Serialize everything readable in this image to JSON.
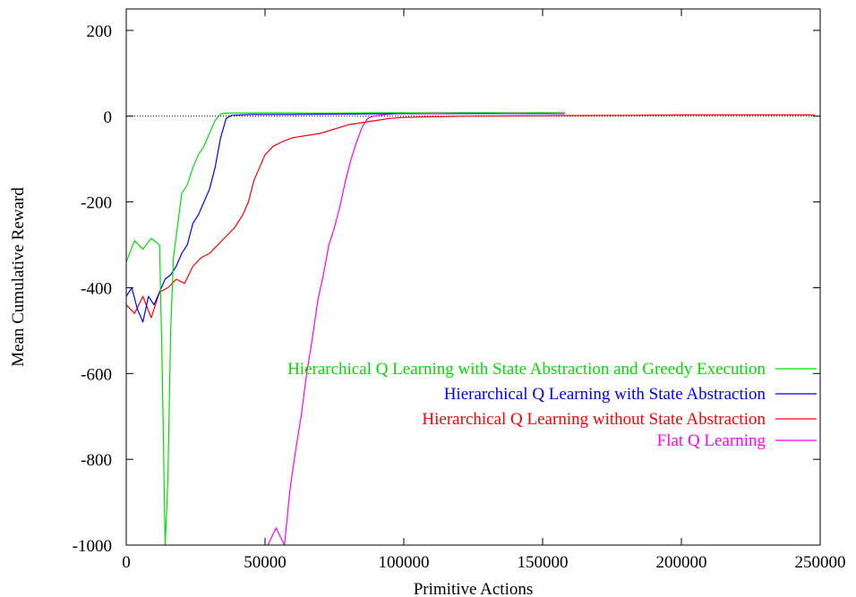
{
  "chart_data": {
    "type": "line",
    "xlabel": "Primitive Actions",
    "ylabel": "Mean Cumulative Reward",
    "xlim": [
      0,
      250000
    ],
    "ylim": [
      -1000,
      250
    ],
    "x_ticks": [
      0,
      50000,
      100000,
      150000,
      200000,
      250000
    ],
    "y_ticks": [
      -1000,
      -800,
      -600,
      -400,
      -200,
      0,
      200
    ],
    "x_tick_labels": [
      "0",
      "50000",
      "100000",
      "150000",
      "200000",
      "250000"
    ],
    "y_tick_labels": [
      "-1000",
      "-800",
      "-600",
      "-400",
      "-200",
      "0",
      "200"
    ],
    "reference_line": {
      "y": 0,
      "style": "dotted",
      "color": "#000000"
    },
    "legend_position": "right, middle-lower",
    "grid": false,
    "series": [
      {
        "name": "Hierarchical Q Learning with State Abstraction and Greedy Execution",
        "color": "#00e000",
        "points": [
          [
            0,
            -340
          ],
          [
            3000,
            -290
          ],
          [
            6000,
            -310
          ],
          [
            9000,
            -285
          ],
          [
            12000,
            -300
          ],
          [
            13000,
            -600
          ],
          [
            14000,
            -1000
          ],
          [
            15000,
            -850
          ],
          [
            16000,
            -500
          ],
          [
            17000,
            -330
          ],
          [
            18000,
            -280
          ],
          [
            19000,
            -230
          ],
          [
            20000,
            -180
          ],
          [
            22000,
            -160
          ],
          [
            24000,
            -120
          ],
          [
            26000,
            -90
          ],
          [
            28000,
            -70
          ],
          [
            30000,
            -40
          ],
          [
            32000,
            -10
          ],
          [
            34000,
            5
          ],
          [
            36000,
            7
          ],
          [
            50000,
            8
          ],
          [
            70000,
            7
          ],
          [
            90000,
            8
          ],
          [
            100000,
            8
          ],
          [
            110000,
            7
          ],
          [
            120000,
            8
          ],
          [
            130000,
            8
          ],
          [
            140000,
            7
          ],
          [
            150000,
            8
          ],
          [
            158000,
            7
          ]
        ]
      },
      {
        "name": "Hierarchical Q Learning with State Abstraction",
        "color": "#0000ff",
        "points": [
          [
            0,
            -420
          ],
          [
            2000,
            -400
          ],
          [
            4000,
            -450
          ],
          [
            6000,
            -480
          ],
          [
            8000,
            -420
          ],
          [
            10000,
            -440
          ],
          [
            12000,
            -410
          ],
          [
            14000,
            -380
          ],
          [
            16000,
            -370
          ],
          [
            18000,
            -350
          ],
          [
            20000,
            -320
          ],
          [
            22000,
            -300
          ],
          [
            24000,
            -250
          ],
          [
            26000,
            -230
          ],
          [
            28000,
            -200
          ],
          [
            30000,
            -170
          ],
          [
            32000,
            -120
          ],
          [
            34000,
            -50
          ],
          [
            36000,
            -5
          ],
          [
            38000,
            2
          ],
          [
            45000,
            4
          ],
          [
            60000,
            4
          ],
          [
            80000,
            5
          ],
          [
            100000,
            6
          ],
          [
            120000,
            6
          ],
          [
            140000,
            6
          ],
          [
            158000,
            6
          ]
        ]
      },
      {
        "name": "Hierarchical Q Learning without State Abstraction",
        "color": "#ff0000",
        "points": [
          [
            0,
            -440
          ],
          [
            3000,
            -460
          ],
          [
            6000,
            -420
          ],
          [
            9000,
            -470
          ],
          [
            12000,
            -410
          ],
          [
            15000,
            -400
          ],
          [
            18000,
            -380
          ],
          [
            21000,
            -390
          ],
          [
            24000,
            -350
          ],
          [
            27000,
            -330
          ],
          [
            30000,
            -320
          ],
          [
            33000,
            -300
          ],
          [
            36000,
            -280
          ],
          [
            39000,
            -260
          ],
          [
            42000,
            -230
          ],
          [
            44000,
            -200
          ],
          [
            46000,
            -150
          ],
          [
            48000,
            -120
          ],
          [
            50000,
            -90
          ],
          [
            53000,
            -70
          ],
          [
            56000,
            -60
          ],
          [
            60000,
            -50
          ],
          [
            65000,
            -45
          ],
          [
            70000,
            -40
          ],
          [
            75000,
            -30
          ],
          [
            80000,
            -20
          ],
          [
            85000,
            -15
          ],
          [
            90000,
            -10
          ],
          [
            95000,
            -5
          ],
          [
            100000,
            -3
          ],
          [
            120000,
            0
          ],
          [
            150000,
            1
          ],
          [
            180000,
            2
          ],
          [
            200000,
            3
          ],
          [
            220000,
            3
          ],
          [
            248000,
            3
          ]
        ]
      },
      {
        "name": "Flat Q Learning",
        "color": "#ff00ff",
        "points": [
          [
            51000,
            -1000
          ],
          [
            54000,
            -960
          ],
          [
            57000,
            -1000
          ],
          [
            59000,
            -870
          ],
          [
            61000,
            -780
          ],
          [
            63000,
            -700
          ],
          [
            65000,
            -600
          ],
          [
            67000,
            -520
          ],
          [
            69000,
            -430
          ],
          [
            71000,
            -370
          ],
          [
            73000,
            -300
          ],
          [
            75000,
            -260
          ],
          [
            77000,
            -210
          ],
          [
            79000,
            -150
          ],
          [
            81000,
            -100
          ],
          [
            83000,
            -60
          ],
          [
            85000,
            -25
          ],
          [
            87000,
            -5
          ],
          [
            89000,
            0
          ],
          [
            95000,
            5
          ],
          [
            100000,
            7
          ],
          [
            110000,
            8
          ],
          [
            120000,
            8
          ],
          [
            130000,
            8
          ],
          [
            140000,
            8
          ],
          [
            150000,
            8
          ],
          [
            158000,
            8
          ]
        ]
      }
    ]
  }
}
